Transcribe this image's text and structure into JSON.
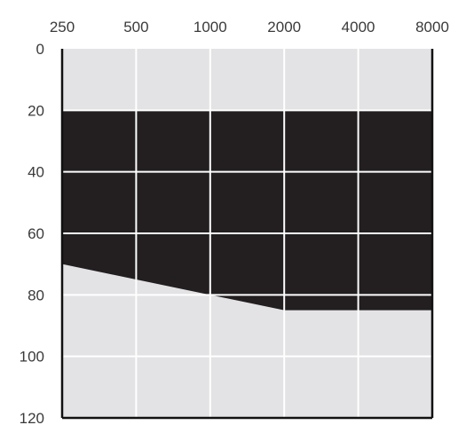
{
  "chart_data": {
    "type": "area",
    "title": "",
    "xlabel": "",
    "ylabel": "",
    "x_scale": "log",
    "x_ticks": [
      250,
      500,
      1000,
      2000,
      4000,
      8000
    ],
    "x_tick_labels": [
      "250",
      "500",
      "1000",
      "2000",
      "4000",
      "8000"
    ],
    "y_ticks": [
      0,
      20,
      40,
      60,
      80,
      100,
      120
    ],
    "y_tick_labels": [
      "0",
      "20",
      "40",
      "60",
      "80",
      "100",
      "120"
    ],
    "xlim": [
      250,
      8000
    ],
    "ylim": [
      0,
      120
    ],
    "y_inverted": true,
    "x_axis_position": "top",
    "grid": true,
    "band": {
      "upper": {
        "x": [
          250,
          8000
        ],
        "y": [
          20,
          20
        ]
      },
      "lower": {
        "x": [
          250,
          500,
          1000,
          2000,
          4000,
          8000
        ],
        "y": [
          70,
          75,
          80,
          85,
          85,
          85
        ]
      }
    },
    "colors": {
      "background": "#e3e3e5",
      "band": "#231f20",
      "grid": "#ffffff",
      "axis": "#111111",
      "text": "#3a3a3a"
    }
  }
}
